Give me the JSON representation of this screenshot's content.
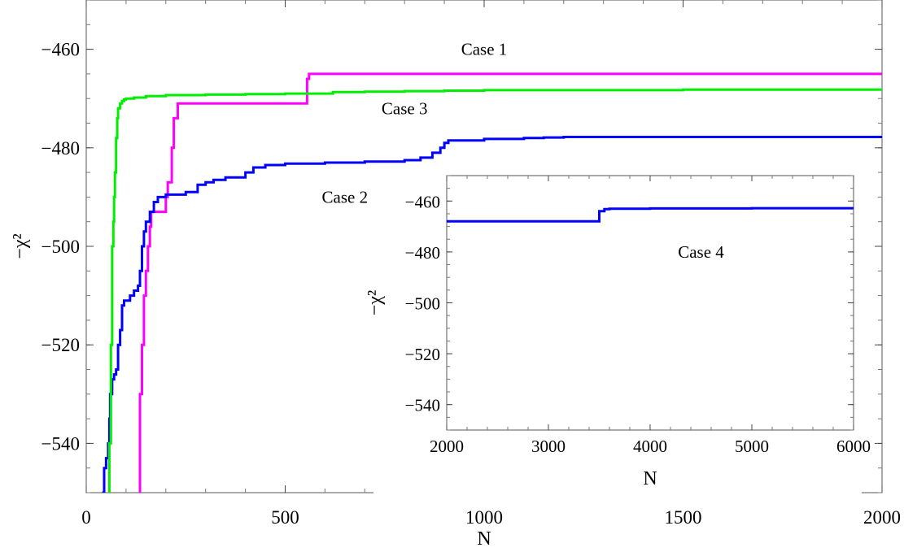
{
  "chart_data": [
    {
      "type": "line",
      "xlabel": "N",
      "ylabel": "−χ²",
      "xlim": [
        0,
        2000
      ],
      "ylim": [
        -550,
        -450
      ],
      "xticks": [
        0,
        500,
        1000,
        1500,
        2000
      ],
      "yticks": [
        -540,
        -520,
        -500,
        -480,
        -460
      ],
      "annotations": [
        {
          "text": "Case 1",
          "x": 1000,
          "y": -460
        },
        {
          "text": "Case 3",
          "x": 800,
          "y": -472
        },
        {
          "text": "Case 2",
          "x": 650,
          "y": -490
        }
      ],
      "series": [
        {
          "key": "case1",
          "color": "#ff00ff",
          "x": [
            135,
            135,
            140,
            145,
            150,
            155,
            160,
            163,
            167,
            175,
            190,
            200,
            205,
            210,
            215,
            220,
            230,
            250,
            300,
            545,
            555,
            560,
            600,
            800,
            1000,
            1500,
            2000
          ],
          "y": [
            -550,
            -530,
            -520,
            -510,
            -505,
            -500,
            -496,
            -493,
            -493,
            -493,
            -493,
            -490,
            -487,
            -487,
            -480,
            -474,
            -471,
            -471,
            -471,
            -471,
            -466,
            -465,
            -465,
            -465,
            -465,
            -465,
            -465
          ]
        },
        {
          "key": "case2",
          "color": "#0000ff",
          "x": [
            40,
            45,
            50,
            55,
            58,
            60,
            65,
            70,
            75,
            80,
            85,
            90,
            95,
            100,
            110,
            120,
            130,
            135,
            140,
            145,
            150,
            160,
            170,
            180,
            200,
            250,
            280,
            300,
            320,
            350,
            400,
            420,
            450,
            500,
            600,
            700,
            800,
            840,
            870,
            890,
            900,
            910,
            1000,
            1100,
            1150,
            1200,
            1500,
            2000
          ],
          "y": [
            -550,
            -545,
            -543,
            -540,
            -535,
            -530,
            -527,
            -526,
            -525,
            -520,
            -517,
            -512,
            -511,
            -511,
            -510,
            -509,
            -508,
            -505,
            -500,
            -497,
            -495,
            -493,
            -491,
            -490,
            -489.5,
            -489,
            -487.5,
            -487,
            -486.5,
            -486,
            -485,
            -484,
            -483.5,
            -483.2,
            -483,
            -482.8,
            -482.5,
            -482,
            -481,
            -480,
            -479,
            -478.5,
            -478.2,
            -478,
            -477.9,
            -477.8,
            -477.8,
            -477.8
          ]
        },
        {
          "key": "case3",
          "color": "#00ee00",
          "x": [
            55,
            58,
            62,
            65,
            68,
            70,
            72,
            75,
            78,
            80,
            85,
            90,
            95,
            100,
            120,
            150,
            200,
            300,
            400,
            500,
            600,
            620,
            700,
            800,
            900,
            1000,
            1500,
            2000
          ],
          "y": [
            -550,
            -540,
            -520,
            -500,
            -495,
            -490,
            -485,
            -478,
            -474,
            -472,
            -471,
            -470.5,
            -470.2,
            -470,
            -469.8,
            -469.5,
            -469.3,
            -469.2,
            -469.1,
            -469,
            -469,
            -468.7,
            -468.6,
            -468.5,
            -468.4,
            -468.3,
            -468.2,
            -468.1
          ]
        }
      ]
    },
    {
      "type": "line",
      "xlabel": "N",
      "ylabel": "−χ²",
      "xlim": [
        2000,
        6000
      ],
      "ylim": [
        -550,
        -450
      ],
      "xticks": [
        2000,
        3000,
        4000,
        5000,
        6000
      ],
      "yticks": [
        -540,
        -520,
        -500,
        -480,
        -460
      ],
      "annotations": [
        {
          "text": "Case 4",
          "x": 4500,
          "y": -480
        }
      ],
      "series": [
        {
          "key": "case4",
          "color": "#0000ff",
          "x": [
            2000,
            3000,
            3500,
            3500,
            3550,
            3600,
            4000,
            5000,
            6000
          ],
          "y": [
            -468,
            -468,
            -468,
            -464,
            -463.2,
            -463,
            -462.9,
            -462.8,
            -462.8
          ]
        }
      ]
    }
  ]
}
